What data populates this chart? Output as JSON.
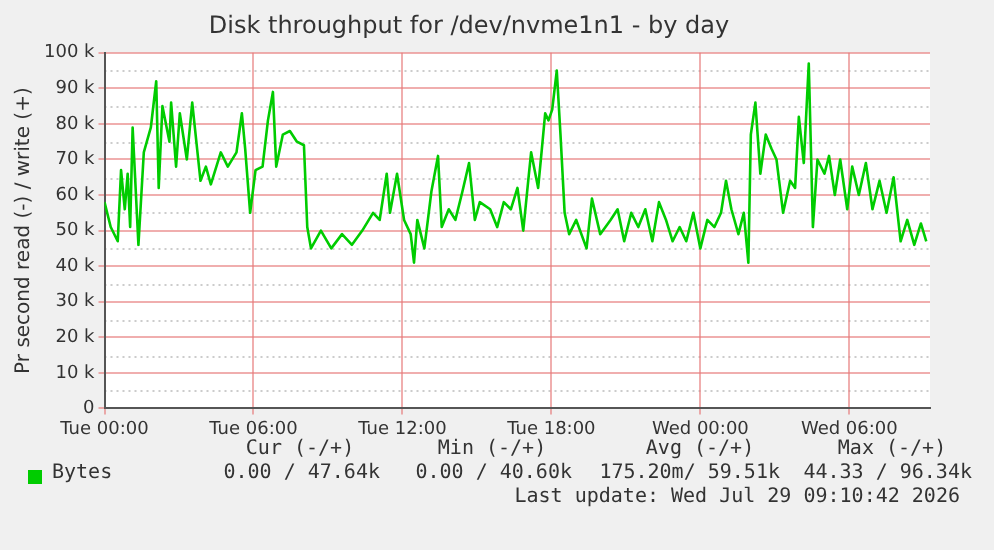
{
  "chart_data": {
    "type": "line",
    "title": "Disk throughput for /dev/nvme1n1 - by day",
    "ylabel": "Pr second read (-) / write (+)",
    "x": [
      "2026-07-28T00:00",
      "2026-07-28T00:15",
      "2026-07-28T00:32",
      "2026-07-28T00:40",
      "2026-07-28T00:49",
      "2026-07-28T00:56",
      "2026-07-28T01:02",
      "2026-07-28T01:08",
      "2026-07-28T01:22",
      "2026-07-28T01:35",
      "2026-07-28T01:52",
      "2026-07-28T02:05",
      "2026-07-28T02:11",
      "2026-07-28T02:20",
      "2026-07-28T02:37",
      "2026-07-28T02:41",
      "2026-07-28T02:53",
      "2026-07-28T03:02",
      "2026-07-28T03:19",
      "2026-07-28T03:32",
      "2026-07-28T03:52",
      "2026-07-28T04:05",
      "2026-07-28T04:17",
      "2026-07-28T04:41",
      "2026-07-28T04:58",
      "2026-07-28T05:19",
      "2026-07-28T05:32",
      "2026-07-28T05:40",
      "2026-07-28T05:52",
      "2026-07-28T06:05",
      "2026-07-28T06:22",
      "2026-07-28T06:35",
      "2026-07-28T06:47",
      "2026-07-28T06:55",
      "2026-07-28T07:11",
      "2026-07-28T07:28",
      "2026-07-28T07:45",
      "2026-07-28T08:02",
      "2026-07-28T08:10",
      "2026-07-28T08:19",
      "2026-07-28T08:43",
      "2026-07-28T09:08",
      "2026-07-28T09:34",
      "2026-07-28T09:58",
      "2026-07-28T10:23",
      "2026-07-28T10:49",
      "2026-07-28T11:05",
      "2026-07-28T11:22",
      "2026-07-28T11:30",
      "2026-07-28T11:47",
      "2026-07-28T12:04",
      "2026-07-28T12:20",
      "2026-07-28T12:28",
      "2026-07-28T12:36",
      "2026-07-28T12:53",
      "2026-07-28T13:10",
      "2026-07-28T13:26",
      "2026-07-28T13:35",
      "2026-07-28T13:52",
      "2026-07-28T14:08",
      "2026-07-28T14:25",
      "2026-07-28T14:41",
      "2026-07-28T14:55",
      "2026-07-28T15:07",
      "2026-07-28T15:32",
      "2026-07-28T15:49",
      "2026-07-28T16:05",
      "2026-07-28T16:22",
      "2026-07-28T16:38",
      "2026-07-28T16:52",
      "2026-07-28T17:04",
      "2026-07-28T17:11",
      "2026-07-28T17:28",
      "2026-07-28T17:37",
      "2026-07-28T17:45",
      "2026-07-28T17:53",
      "2026-07-28T18:02",
      "2026-07-28T18:13",
      "2026-07-28T18:22",
      "2026-07-28T18:32",
      "2026-07-28T18:43",
      "2026-07-28T19:00",
      "2026-07-28T19:25",
      "2026-07-28T19:38",
      "2026-07-28T19:58",
      "2026-07-28T20:23",
      "2026-07-28T20:40",
      "2026-07-28T20:56",
      "2026-07-28T21:13",
      "2026-07-28T21:30",
      "2026-07-28T21:47",
      "2026-07-28T22:04",
      "2026-07-28T22:20",
      "2026-07-28T22:37",
      "2026-07-28T22:53",
      "2026-07-28T23:10",
      "2026-07-28T23:26",
      "2026-07-28T23:43",
      "2026-07-29T00:00",
      "2026-07-29T00:17",
      "2026-07-29T00:34",
      "2026-07-29T00:50",
      "2026-07-29T01:02",
      "2026-07-29T01:15",
      "2026-07-29T01:32",
      "2026-07-29T01:45",
      "2026-07-29T01:56",
      "2026-07-29T02:02",
      "2026-07-29T02:13",
      "2026-07-29T02:25",
      "2026-07-29T02:38",
      "2026-07-29T02:52",
      "2026-07-29T03:04",
      "2026-07-29T03:20",
      "2026-07-29T03:37",
      "2026-07-29T03:49",
      "2026-07-29T03:58",
      "2026-07-29T04:10",
      "2026-07-29T04:22",
      "2026-07-29T04:32",
      "2026-07-29T04:43",
      "2026-07-29T05:00",
      "2026-07-29T05:11",
      "2026-07-29T05:25",
      "2026-07-29T05:38",
      "2026-07-29T05:55",
      "2026-07-29T06:07",
      "2026-07-29T06:23",
      "2026-07-29T06:40",
      "2026-07-29T06:56",
      "2026-07-29T07:13",
      "2026-07-29T07:30",
      "2026-07-29T07:47",
      "2026-07-29T08:04",
      "2026-07-29T08:20",
      "2026-07-29T08:37",
      "2026-07-29T08:53",
      "2026-07-29T09:06"
    ],
    "series": [
      {
        "name": "Bytes",
        "color": "#00cc00",
        "values": [
          58,
          51,
          47,
          67,
          56,
          66,
          51,
          79,
          46,
          72,
          79,
          92,
          62,
          85,
          75,
          86,
          68,
          83,
          70,
          86,
          64,
          68,
          63,
          72,
          68,
          72,
          83,
          73,
          55,
          67,
          68,
          81,
          89,
          68,
          77,
          78,
          75,
          74,
          51,
          45,
          50,
          45,
          49,
          46,
          50,
          55,
          53,
          66,
          55,
          66,
          53,
          49,
          41,
          53,
          45,
          61,
          71,
          51,
          56,
          53,
          61,
          69,
          53,
          58,
          56,
          51,
          58,
          56,
          62,
          50,
          64,
          72,
          62,
          73,
          83,
          81,
          84,
          95,
          77,
          55,
          49,
          53,
          45,
          59,
          49,
          53,
          56,
          47,
          55,
          51,
          56,
          47,
          58,
          53,
          47,
          51,
          47,
          55,
          45,
          53,
          51,
          55,
          64,
          56,
          49,
          55,
          41,
          77,
          86,
          66,
          77,
          73,
          70,
          55,
          64,
          62,
          82,
          69,
          97,
          51,
          70,
          66,
          71,
          60,
          70,
          56,
          68,
          60,
          69,
          56,
          64,
          55,
          65,
          47,
          53,
          46,
          52,
          47
        ]
      }
    ],
    "xlim": [
      "2026-07-28T00:00",
      "2026-07-29T09:15"
    ],
    "xticks": [
      {
        "value": "2026-07-28T00:00",
        "label": "Tue 00:00"
      },
      {
        "value": "2026-07-28T06:00",
        "label": "Tue 06:00"
      },
      {
        "value": "2026-07-28T12:00",
        "label": "Tue 12:00"
      },
      {
        "value": "2026-07-28T18:00",
        "label": "Tue 18:00"
      },
      {
        "value": "2026-07-29T00:00",
        "label": "Wed 00:00"
      },
      {
        "value": "2026-07-29T06:00",
        "label": "Wed 06:00"
      }
    ],
    "ylim": [
      0,
      100
    ],
    "yticks": [
      0,
      {
        "value": 10,
        "label": "10 k"
      },
      {
        "value": 20,
        "label": "20 k"
      },
      {
        "value": 30,
        "label": "30 k"
      },
      {
        "value": 40,
        "label": "40 k"
      },
      {
        "value": 50,
        "label": "50 k"
      },
      {
        "value": 60,
        "label": "60 k"
      },
      {
        "value": 70,
        "label": "70 k"
      },
      {
        "value": 80,
        "label": "80 k"
      },
      {
        "value": 90,
        "label": "90 k"
      },
      {
        "value": 100,
        "label": "100 k"
      }
    ],
    "grid": true,
    "legend": "bottom",
    "marker": "none",
    "line_style": "solid",
    "annotations": [
      "Cur (-/+)",
      "Min (-/+)",
      "Avg (-/+)",
      "Max (-/+)",
      "0.00 / 47.64k",
      "0.00 / 40.60k",
      "175.20m/ 59.51k",
      "44.33 / 96.34k",
      "Last update: Wed Jul 29 09:10:42 2026"
    ]
  }
}
